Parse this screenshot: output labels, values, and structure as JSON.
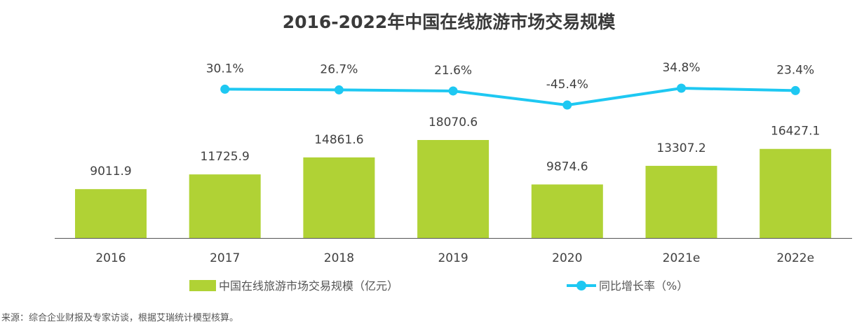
{
  "chart_data": {
    "type": "bar+line",
    "title": "2016-2022年中国在线旅游市场交易规模",
    "categories": [
      "2016",
      "2017",
      "2018",
      "2019",
      "2020",
      "2021e",
      "2022e"
    ],
    "series": [
      {
        "name": "中国在线旅游市场交易规模（亿元）",
        "type": "bar",
        "values": [
          9011.9,
          11725.9,
          14861.6,
          18070.6,
          9874.6,
          13307.2,
          16427.1
        ],
        "labels": [
          "9011.9",
          "11725.9",
          "14861.6",
          "18070.6",
          "9874.6",
          "13307.2",
          "16427.1"
        ],
        "color": "#b0d235"
      },
      {
        "name": "同比增长率（%）",
        "type": "line",
        "values": [
          null,
          30.1,
          26.7,
          21.6,
          -45.4,
          34.8,
          23.4
        ],
        "labels": [
          "",
          "30.1%",
          "26.7%",
          "21.6%",
          "-45.4%",
          "34.8%",
          "23.4%"
        ],
        "color": "#1ec8f2"
      }
    ],
    "legend": "bottom",
    "grid": false
  },
  "source": "来源：综合企业财报及专家访谈，根据艾瑞统计模型核算。"
}
